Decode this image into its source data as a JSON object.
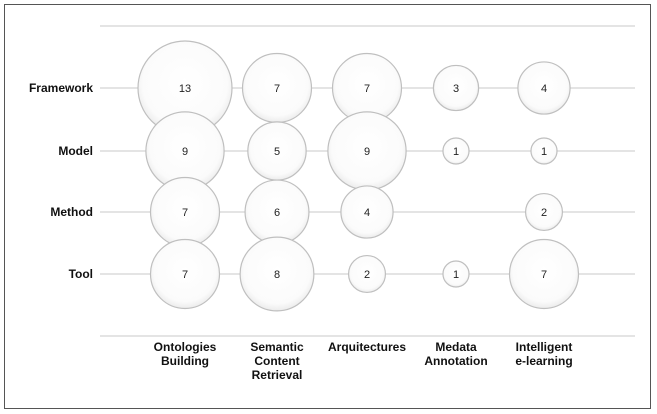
{
  "chart_data": {
    "type": "scatter",
    "subtype": "bubble-matrix",
    "title": "",
    "xlabel": "",
    "ylabel": "",
    "x_categories": [
      [
        "Ontologies",
        "Building"
      ],
      [
        "Semantic",
        "Content",
        "Retrieval"
      ],
      [
        "Arquitectures"
      ],
      [
        "Medata",
        "Annotation"
      ],
      [
        "Intelligent",
        "e-learning"
      ]
    ],
    "y_categories": [
      "Framework",
      "Model",
      "Method",
      "Tool"
    ],
    "values": [
      [
        13,
        7,
        7,
        3,
        4
      ],
      [
        9,
        5,
        9,
        1,
        1
      ],
      [
        7,
        6,
        4,
        null,
        2
      ],
      [
        7,
        8,
        2,
        1,
        7
      ]
    ],
    "grid": true,
    "legend": "none",
    "colors": {
      "bubble_fill": "#ffffff",
      "bubble_shade": "#e4e4e4",
      "bubble_stroke": "#bfbfbf",
      "grid": "#c8c8c8"
    }
  }
}
